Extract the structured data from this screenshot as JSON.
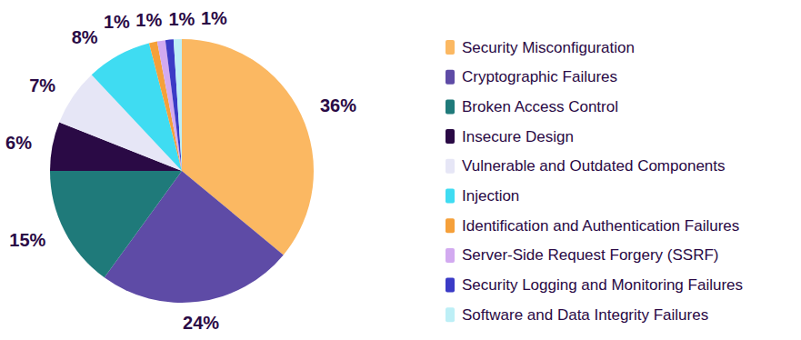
{
  "chart_data": {
    "type": "pie",
    "categories": [
      "Security Misconfiguration",
      "Cryptographic Failures",
      "Broken Access Control",
      "Insecure Design",
      "Vulnerable and Outdated Components",
      "Injection",
      "Identification and Authentication Failures",
      "Server-Side Request Forgery (SSRF)",
      "Security Logging and Monitoring Failures",
      "Software and Data Integrity Failures"
    ],
    "values": [
      36,
      24,
      15,
      6,
      7,
      8,
      1,
      1,
      1,
      1
    ],
    "value_labels": [
      "36%",
      "24%",
      "15%",
      "6%",
      "7%",
      "8%",
      "1%",
      "1%",
      "1%",
      "1%"
    ],
    "colors": [
      "#fbb862",
      "#5e4ba6",
      "#1f7a7a",
      "#2a0a45",
      "#e6e6f6",
      "#3fdcf2",
      "#f5a03a",
      "#d2aaf0",
      "#3b3bc6",
      "#bdeff6"
    ],
    "data_labels": true,
    "legend": "right"
  }
}
